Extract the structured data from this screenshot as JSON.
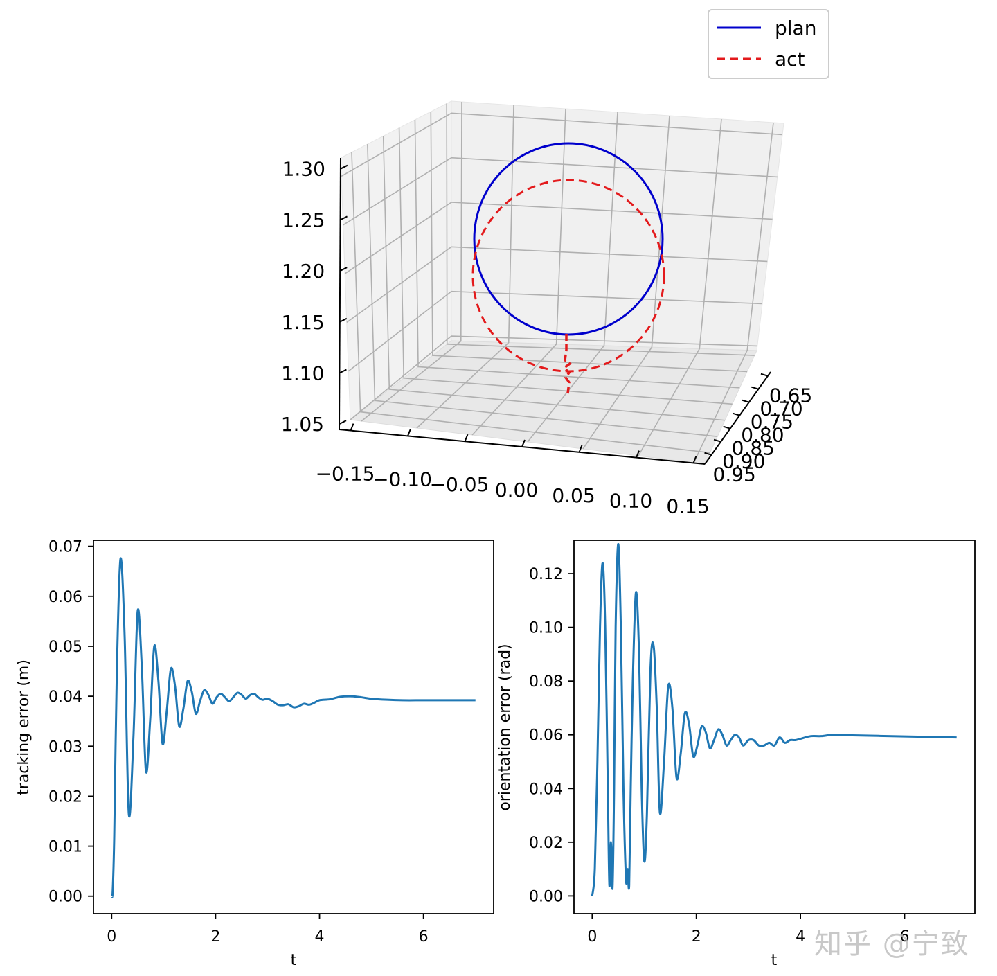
{
  "chart_data": [
    {
      "type": "line3d",
      "legend": {
        "placement": "top-right",
        "entries": [
          {
            "name": "plan",
            "color": "#0000cc",
            "style": "solid"
          },
          {
            "name": "act",
            "color": "#e31a1c",
            "style": "dashed"
          }
        ]
      },
      "z_ticks": [
        "1.05",
        "1.10",
        "1.15",
        "1.20",
        "1.25",
        "1.30"
      ],
      "x_ticks": [
        "−0.15",
        "−0.10",
        "−0.05",
        "0.00",
        "0.05",
        "0.10",
        "0.15"
      ],
      "y_ticks": [
        "0.65",
        "0.70",
        "0.75",
        "0.80",
        "0.85",
        "0.90",
        "0.95"
      ],
      "zlim": [
        1.05,
        1.3
      ],
      "series": [
        {
          "name": "plan",
          "shape": "circle",
          "center_x": 0.0,
          "center_z": 1.21,
          "radius": 0.095
        },
        {
          "name": "act",
          "shape": "circle",
          "center_x": -0.005,
          "center_z": 1.17,
          "radius": 0.095,
          "transient_from_z": 1.12
        }
      ]
    },
    {
      "type": "line",
      "xlabel": "t",
      "ylabel": "tracking error (m)",
      "xlim": [
        -0.35,
        7.35
      ],
      "ylim": [
        -0.0035,
        0.0712
      ],
      "x_ticks": [
        "0",
        "2",
        "4",
        "6"
      ],
      "y_ticks": [
        "0.00",
        "0.01",
        "0.02",
        "0.03",
        "0.04",
        "0.05",
        "0.06",
        "0.07"
      ],
      "color": "#1f77b4",
      "x": [
        0,
        0.02,
        0.05,
        0.1,
        0.17,
        0.25,
        0.33,
        0.42,
        0.5,
        0.58,
        0.66,
        0.74,
        0.82,
        0.9,
        0.98,
        1.06,
        1.14,
        1.22,
        1.3,
        1.38,
        1.46,
        1.54,
        1.62,
        1.7,
        1.78,
        1.86,
        1.94,
        2.02,
        2.1,
        2.18,
        2.26,
        2.34,
        2.42,
        2.5,
        2.58,
        2.66,
        2.74,
        2.82,
        2.9,
        3.0,
        3.1,
        3.2,
        3.3,
        3.4,
        3.5,
        3.6,
        3.7,
        3.8,
        3.9,
        4.0,
        4.2,
        4.4,
        4.6,
        4.8,
        5.0,
        5.3,
        5.6,
        6.0,
        6.5,
        7.0
      ],
      "y": [
        0.0,
        0.001,
        0.012,
        0.045,
        0.0675,
        0.052,
        0.0165,
        0.032,
        0.057,
        0.046,
        0.025,
        0.035,
        0.05,
        0.043,
        0.0305,
        0.037,
        0.0455,
        0.042,
        0.034,
        0.0375,
        0.043,
        0.041,
        0.0365,
        0.039,
        0.0412,
        0.0403,
        0.0385,
        0.0398,
        0.0405,
        0.0398,
        0.039,
        0.0398,
        0.0407,
        0.0403,
        0.0395,
        0.0402,
        0.0405,
        0.0398,
        0.0393,
        0.0395,
        0.039,
        0.0383,
        0.0382,
        0.0384,
        0.0378,
        0.038,
        0.0385,
        0.0383,
        0.0387,
        0.0392,
        0.0394,
        0.0399,
        0.04,
        0.0398,
        0.0395,
        0.0393,
        0.0392,
        0.0392,
        0.0392,
        0.0392
      ]
    },
    {
      "type": "line",
      "xlabel": "t",
      "ylabel": "orientation error (rad)",
      "xlim": [
        -0.35,
        7.35
      ],
      "ylim": [
        -0.0066,
        0.1324
      ],
      "x_ticks": [
        "0",
        "2",
        "4",
        "6"
      ],
      "y_ticks": [
        "0.00",
        "0.02",
        "0.04",
        "0.06",
        "0.08",
        "0.10",
        "0.12"
      ],
      "color": "#1f77b4",
      "x": [
        0,
        0.05,
        0.1,
        0.15,
        0.2,
        0.25,
        0.3,
        0.33,
        0.36,
        0.39,
        0.42,
        0.45,
        0.5,
        0.55,
        0.6,
        0.65,
        0.68,
        0.71,
        0.74,
        0.78,
        0.84,
        0.9,
        0.95,
        1.0,
        1.05,
        1.12,
        1.18,
        1.24,
        1.3,
        1.38,
        1.46,
        1.54,
        1.62,
        1.7,
        1.78,
        1.86,
        1.94,
        2.02,
        2.1,
        2.18,
        2.26,
        2.34,
        2.42,
        2.5,
        2.58,
        2.66,
        2.74,
        2.82,
        2.9,
        3.0,
        3.1,
        3.2,
        3.3,
        3.4,
        3.5,
        3.6,
        3.7,
        3.8,
        3.9,
        4.0,
        4.2,
        4.4,
        4.6,
        4.8,
        5.0,
        5.5,
        6.0,
        6.5,
        7.0
      ],
      "y": [
        0.0,
        0.01,
        0.05,
        0.1,
        0.124,
        0.1,
        0.04,
        0.004,
        0.02,
        0.003,
        0.04,
        0.1,
        0.131,
        0.1,
        0.04,
        0.006,
        0.01,
        0.004,
        0.04,
        0.08,
        0.113,
        0.09,
        0.04,
        0.013,
        0.03,
        0.085,
        0.093,
        0.07,
        0.031,
        0.05,
        0.078,
        0.07,
        0.044,
        0.053,
        0.068,
        0.064,
        0.052,
        0.056,
        0.063,
        0.061,
        0.055,
        0.058,
        0.062,
        0.06,
        0.056,
        0.058,
        0.06,
        0.059,
        0.056,
        0.058,
        0.058,
        0.056,
        0.056,
        0.057,
        0.056,
        0.059,
        0.057,
        0.058,
        0.058,
        0.0585,
        0.0595,
        0.0595,
        0.06,
        0.06,
        0.0598,
        0.0596,
        0.0594,
        0.0592,
        0.059
      ]
    }
  ],
  "watermark": "知乎 @宁致"
}
